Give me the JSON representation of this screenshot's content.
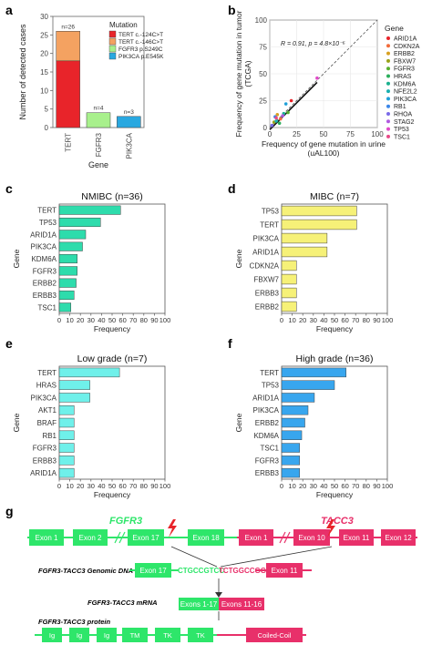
{
  "panels": {
    "a": {
      "letter": "a"
    },
    "b": {
      "letter": "b"
    },
    "c": {
      "letter": "c"
    },
    "d": {
      "letter": "d"
    },
    "e": {
      "letter": "e"
    },
    "f": {
      "letter": "f"
    },
    "g": {
      "letter": "g"
    }
  },
  "chart_data": [
    {
      "id": "a",
      "type": "bar",
      "stacked": true,
      "categories": [
        "TERT",
        "FGFR3",
        "PIK3CA"
      ],
      "series": [
        {
          "name": "TERT c.-124C>T",
          "color": "#e8242a",
          "values": [
            18,
            0,
            0
          ]
        },
        {
          "name": "TERT c.-146C>T",
          "color": "#f4a261",
          "values": [
            8,
            0,
            0
          ]
        },
        {
          "name": "FGFR3 p.S249C",
          "color": "#a8f08c",
          "values": [
            0,
            4,
            0
          ]
        },
        {
          "name": "PIK3CA p.E545K",
          "color": "#29a8e0",
          "values": [
            0,
            0,
            3
          ]
        }
      ],
      "labels": [
        "n=26",
        "n=4",
        "n=3"
      ],
      "ylim": [
        0,
        30
      ],
      "yticks": [
        0,
        5,
        10,
        15,
        20,
        25,
        30
      ],
      "ylabel": "Number of detected cases",
      "xlabel": "Gene",
      "legend_title": "Mutation",
      "legend_position": "top-right",
      "grid": false
    },
    {
      "id": "b",
      "type": "scatter",
      "xlim": [
        0,
        100
      ],
      "ylim": [
        0,
        100
      ],
      "xticks": [
        0,
        25,
        50,
        75,
        100
      ],
      "yticks": [
        0,
        25,
        50,
        75,
        100
      ],
      "xlabel": [
        "Frequency of gene mutation in urine",
        "(uAL100)"
      ],
      "ylabel": [
        "Frequency of gene mutation in tumor",
        "(TCGA)"
      ],
      "annotation": "R = 0.91, p = 4.8×10⁻⁶",
      "legend_title": "Gene",
      "legend_position": "right",
      "points": [
        {
          "name": "ARID1A",
          "color": "#e8242a",
          "x": 20,
          "y": 25
        },
        {
          "name": "CDKN2A",
          "color": "#f26b3a",
          "x": 10,
          "y": 8
        },
        {
          "name": "ERBB2",
          "color": "#d8a020",
          "x": 7,
          "y": 12
        },
        {
          "name": "FBXW7",
          "color": "#9aa21a",
          "x": 4,
          "y": 5
        },
        {
          "name": "FGFR3",
          "color": "#58b030",
          "x": 17,
          "y": 14
        },
        {
          "name": "HRAS",
          "color": "#2aae5a",
          "x": 9,
          "y": 4
        },
        {
          "name": "KDM6A",
          "color": "#1ab08e",
          "x": 13,
          "y": 13
        },
        {
          "name": "NFE2L2",
          "color": "#1ab0b0",
          "x": 6,
          "y": 6
        },
        {
          "name": "PIK3CA",
          "color": "#20a0d8",
          "x": 15,
          "y": 22
        },
        {
          "name": "RB1",
          "color": "#3a86e8",
          "x": 5,
          "y": 10
        },
        {
          "name": "RHOA",
          "color": "#7a6ae8",
          "x": 2,
          "y": 2
        },
        {
          "name": "STAG2",
          "color": "#b05ae0",
          "x": 12,
          "y": 11
        },
        {
          "name": "TP53",
          "color": "#e04ac8",
          "x": 44,
          "y": 46
        },
        {
          "name": "TSC1",
          "color": "#e84a88",
          "x": 6,
          "y": 9
        }
      ],
      "regression": {
        "x": [
          0,
          44
        ],
        "y": [
          -2,
          42
        ]
      },
      "identity_line": true,
      "grid": true
    },
    {
      "id": "c",
      "type": "bar",
      "orientation": "horizontal",
      "title": "NMIBC (n=36)",
      "color": "#2edcac",
      "categories": [
        "TERT",
        "TP53",
        "ARID1A",
        "PIK3CA",
        "KDM6A",
        "FGFR3",
        "ERBB2",
        "ERBB3",
        "TSC1"
      ],
      "values": [
        58,
        39,
        25,
        22,
        17,
        17,
        16,
        14,
        11
      ],
      "xlim": [
        0,
        100
      ],
      "xticks": [
        0,
        10,
        20,
        30,
        40,
        50,
        60,
        70,
        80,
        90,
        100
      ],
      "xlabel": "Frequency",
      "ylabel": "Gene"
    },
    {
      "id": "d",
      "type": "bar",
      "orientation": "horizontal",
      "title": "MIBC (n=7)",
      "color": "#f6f178",
      "categories": [
        "TP53",
        "TERT",
        "PIK3CA",
        "ARID1A",
        "CDKN2A",
        "FBXW7",
        "ERBB3",
        "ERBB2"
      ],
      "values": [
        71,
        71,
        43,
        43,
        14,
        14,
        14,
        14
      ],
      "xlim": [
        0,
        100
      ],
      "xticks": [
        0,
        10,
        20,
        30,
        40,
        50,
        60,
        70,
        80,
        90,
        100
      ],
      "xlabel": "Frequency",
      "ylabel": "Gene"
    },
    {
      "id": "e",
      "type": "bar",
      "orientation": "horizontal",
      "title": "Low grade (n=7)",
      "color": "#6ff0ea",
      "categories": [
        "TERT",
        "HRAS",
        "PIK3CA",
        "AKT1",
        "BRAF",
        "RB1",
        "FGFR3",
        "ERBB3",
        "ARID1A"
      ],
      "values": [
        57,
        29,
        29,
        14,
        14,
        14,
        14,
        14,
        14
      ],
      "xlim": [
        0,
        100
      ],
      "xticks": [
        0,
        10,
        20,
        30,
        40,
        50,
        60,
        70,
        80,
        90,
        100
      ],
      "xlabel": "Frequency",
      "ylabel": "Gene"
    },
    {
      "id": "f",
      "type": "bar",
      "orientation": "horizontal",
      "title": "High grade (n=36)",
      "color": "#38a6ee",
      "categories": [
        "TERT",
        "TP53",
        "ARID1A",
        "PIK3CA",
        "ERBB2",
        "KDM6A",
        "TSC1",
        "FGFR3",
        "ERBB3"
      ],
      "values": [
        61,
        50,
        31,
        25,
        22,
        19,
        17,
        17,
        17
      ],
      "xlim": [
        0,
        100
      ],
      "xticks": [
        0,
        10,
        20,
        30,
        40,
        50,
        60,
        70,
        80,
        90,
        100
      ],
      "xlabel": "Frequency",
      "ylabel": "Gene"
    }
  ],
  "diagram": {
    "fgfr3_label": "FGFR3",
    "tacc3_label": "TACC3",
    "fgfr3_exons": [
      "Exon 1",
      "Exon 2",
      "Exon 17",
      "Exon 18"
    ],
    "tacc3_exons": [
      "Exon 1",
      "Exon 10",
      "Exon 11",
      "Exon 12"
    ],
    "dna_label": "FGFR3-TACC3 Genomic DNA",
    "dna_exon_left": "Exon 17",
    "dna_seq_left": "CTGCCGTCC",
    "dna_seq_right": "TCTGGCCGG",
    "dna_exon_right": "Exon 11",
    "mrna_label": "FGFR3-TACC3 mRNA",
    "mrna_left": "Exons 1-17",
    "mrna_right": "Exons 11-16",
    "protein_label": "FGFR3-TACC3 protein",
    "protein_domains": [
      "Ig",
      "Ig",
      "Ig",
      "TM",
      "TK",
      "TK",
      "Coiled-Coil"
    ],
    "colors": {
      "fgfr3": "#2ee66a",
      "tacc3": "#e8306a",
      "bolt": "#e8242a"
    }
  }
}
